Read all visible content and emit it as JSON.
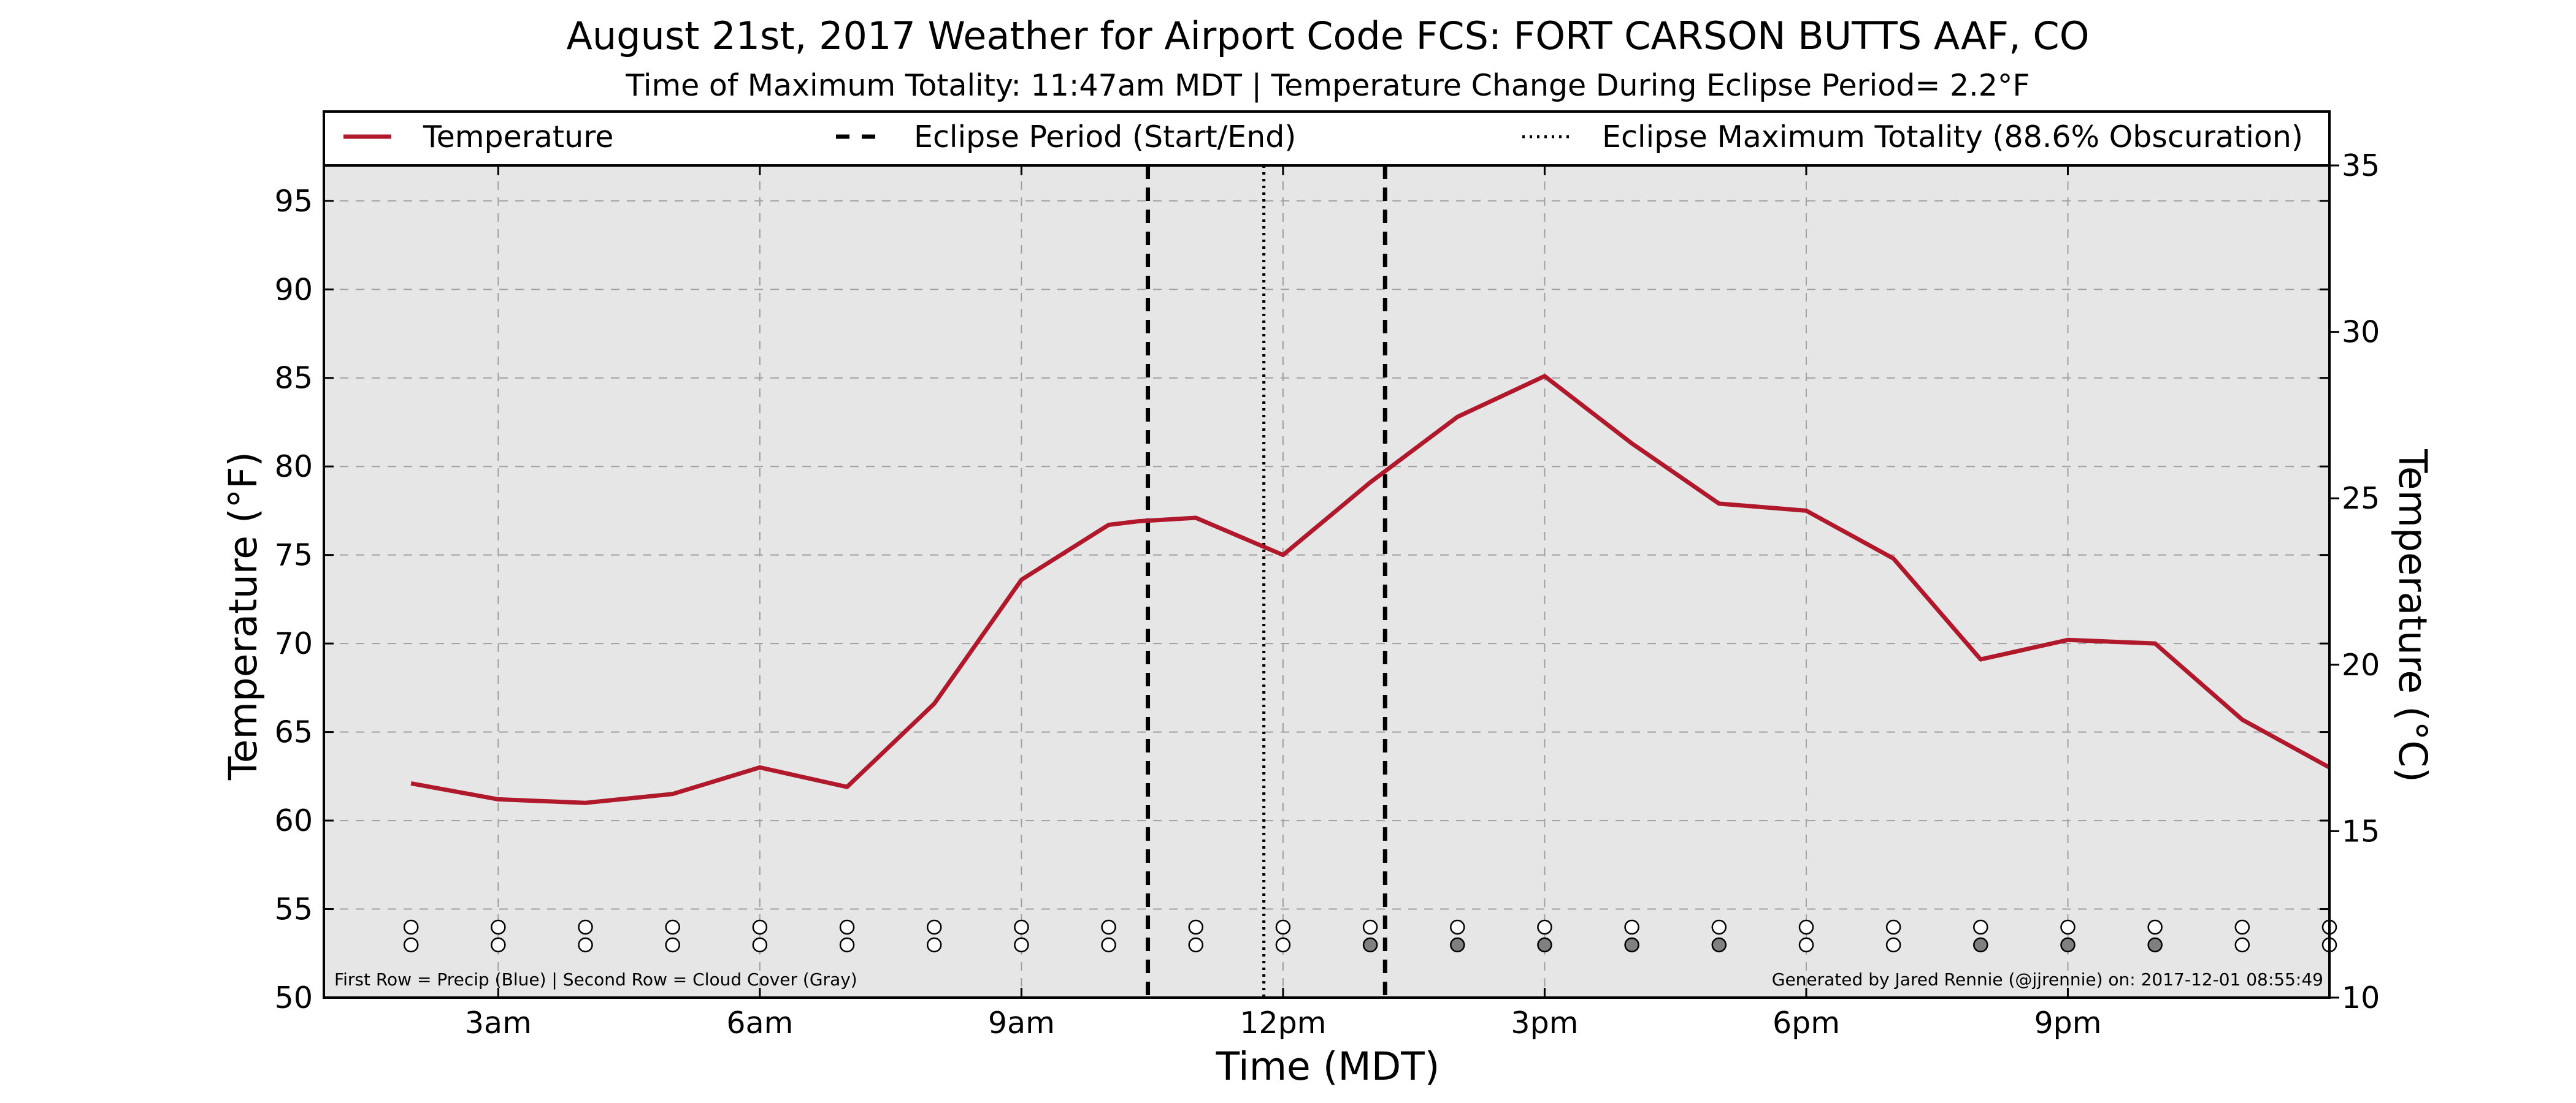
{
  "chart_data": {
    "type": "line",
    "title": "August 21st, 2017 Weather for Airport Code FCS: FORT CARSON BUTTS AAF, CO",
    "subtitle": "Time of Maximum Totality: 11:47am MDT | Temperature Change During Eclipse Period= 2.2°F",
    "xlabel": "Time (MDT)",
    "ylabel": "Temperature (°F)",
    "ylabel_right": "Temperature (°C)",
    "xlim": [
      1.0,
      24.0
    ],
    "ylim": [
      50,
      97
    ],
    "ylim_right": [
      10,
      35
    ],
    "x_ticks": [
      3,
      6,
      9,
      12,
      15,
      18,
      21
    ],
    "x_tick_labels": [
      "3am",
      "6am",
      "9am",
      "12pm",
      "3pm",
      "6pm",
      "9pm"
    ],
    "y_ticks": [
      50,
      55,
      60,
      65,
      70,
      75,
      80,
      85,
      90,
      95
    ],
    "y_tick_labels": [
      "50",
      "55",
      "60",
      "65",
      "70",
      "75",
      "80",
      "85",
      "90",
      "95"
    ],
    "y_right_ticks": [
      10,
      15,
      20,
      25,
      30,
      35
    ],
    "y_right_tick_labels": [
      "10",
      "15",
      "20",
      "25",
      "30",
      "35"
    ],
    "grid": true,
    "legend_position": "top",
    "legend": [
      {
        "label": "Temperature",
        "style": "solid",
        "color": "#b0182b"
      },
      {
        "label": "Eclipse Period (Start/End)",
        "style": "dashed",
        "color": "#000000"
      },
      {
        "label": "Eclipse Maximum Totality (88.6% Obscuration)",
        "style": "dotted",
        "color": "#000000"
      }
    ],
    "series": [
      {
        "name": "Temperature",
        "color": "#b0182b",
        "x": [
          2,
          3,
          4,
          5,
          6,
          7,
          8,
          9,
          10,
          10.33,
          11,
          12,
          13,
          14,
          15,
          16,
          17,
          18,
          19,
          20,
          21,
          22,
          23,
          24
        ],
        "y": [
          62.1,
          61.2,
          61.0,
          61.5,
          63.0,
          61.9,
          66.6,
          73.6,
          76.7,
          76.9,
          77.1,
          75.0,
          79.1,
          82.8,
          85.1,
          81.3,
          77.9,
          77.5,
          74.8,
          69.1,
          70.2,
          70.0,
          65.7,
          63.0
        ]
      }
    ],
    "eclipse_start": 10.45,
    "eclipse_max": 11.78,
    "eclipse_end": 13.17,
    "marker_x": [
      2,
      3,
      4,
      5,
      6,
      7,
      8,
      9,
      10,
      11,
      12,
      13,
      14,
      15,
      16,
      17,
      18,
      19,
      20,
      21,
      22,
      23,
      24
    ],
    "precip_row": [
      0,
      0,
      0,
      0,
      0,
      0,
      0,
      0,
      0,
      0,
      0,
      0,
      0,
      0,
      0,
      0,
      0,
      0,
      0,
      0,
      0,
      0,
      0
    ],
    "cloud_row": [
      0,
      0,
      0,
      0,
      0,
      0,
      0,
      0,
      0,
      0,
      0,
      1,
      1,
      1,
      1,
      1,
      0,
      0,
      1,
      1,
      1,
      0,
      0
    ],
    "colors": {
      "plot_background": "#e6e6e6",
      "temperature": "#b0182b",
      "cloud_fill": "#808080",
      "empty_fill": "#ffffff"
    },
    "footnote_left": "First Row = Precip (Blue) | Second Row = Cloud Cover (Gray)",
    "footnote_right": "Generated by Jared Rennie (@jjrennie) on: 2017-12-01 08:55:49"
  }
}
